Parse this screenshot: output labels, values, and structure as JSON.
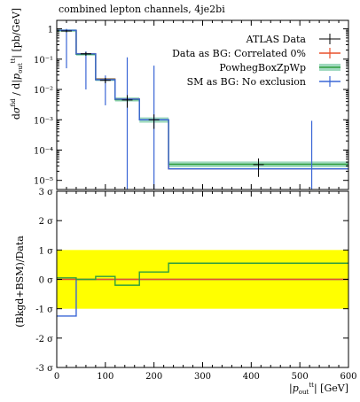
{
  "chart_data": [
    {
      "type": "line",
      "title": "combined lepton channels, 4je2bi",
      "ylabel": "dσ^fid / d|p_out^tt| [pb/GeV]",
      "xlabel": "|p_out^tt| [GeV]",
      "yscale": "log",
      "ylim": [
        5e-06,
        1.0
      ],
      "xlim": [
        0,
        600
      ],
      "legend_position": "top-right",
      "y_tick_labels": [
        "1",
        "10⁻¹",
        "10⁻²",
        "10⁻³",
        "10⁻⁴",
        "10⁻⁵"
      ],
      "x_tick_labels": [
        "0",
        "100",
        "200",
        "300",
        "400",
        "500",
        "600"
      ],
      "bin_edges": [
        0,
        40,
        80,
        120,
        170,
        230,
        600
      ],
      "series": [
        {
          "name": "ATLAS Data",
          "color": "#000000",
          "values": [
            0.85,
            0.15,
            0.02,
            0.0045,
            0.001,
            3.3e-05
          ],
          "err_low": [
            0.08,
            0.02,
            0.004,
            0.002,
            0.0005,
            2e-05
          ],
          "err_high": [
            0.08,
            0.02,
            0.004,
            0.002,
            0.0005,
            2e-05
          ]
        },
        {
          "name": "Data as BG: Correlated 0%",
          "color": "#e8512b",
          "values": [
            0.9,
            0.15,
            0.022,
            0.0048,
            0.001,
            2.4e-05
          ]
        },
        {
          "name": "PowhegBoxZpWp",
          "color": "#2f9e3e",
          "band_color": "#9fd9bf",
          "values": [
            0.88,
            0.145,
            0.021,
            0.0046,
            0.001,
            3.4e-05
          ],
          "band_low": [
            0.8,
            0.13,
            0.019,
            0.004,
            0.0008,
            2.7e-05
          ],
          "band_high": [
            0.96,
            0.16,
            0.024,
            0.0055,
            0.0012,
            4.2e-05
          ]
        },
        {
          "name": "SM as BG: No exclusion",
          "color": "#3a66d6",
          "values": [
            0.9,
            0.15,
            0.021,
            0.0048,
            0.001,
            2.4e-05
          ],
          "err_low": [
            0.85,
            0.14,
            0.018,
            0.0048,
            0.001,
            2.4e-05
          ],
          "err_high": [
            0.1,
            0.03,
            0.008,
            0.11,
            0.06,
            0.0009
          ]
        }
      ]
    },
    {
      "type": "line",
      "ylabel": "(Bkgd+BSM)/Data",
      "xlabel": "|p_out^tt| [GeV]",
      "xlim": [
        0,
        600
      ],
      "ylim": [
        -3,
        3
      ],
      "y_tick_labels": [
        "3 σ",
        "2 σ",
        "1 σ",
        "0 σ",
        "-1 σ",
        "-2 σ",
        "-3 σ"
      ],
      "x_tick_labels": [
        "0",
        "100",
        "200",
        "300",
        "400",
        "500",
        "600"
      ],
      "band": {
        "low": -1,
        "high": 1,
        "color": "#ffff00"
      },
      "bin_edges": [
        0,
        40,
        80,
        120,
        170,
        230,
        600
      ],
      "series": [
        {
          "name": "Data as BG: Correlated 0%",
          "color": "#e8512b",
          "values": [
            0,
            0,
            0,
            0,
            0,
            0
          ]
        },
        {
          "name": "PowhegBoxZpWp",
          "color": "#2f9e3e",
          "values": [
            0.05,
            0.0,
            0.1,
            -0.2,
            0.25,
            0.55
          ]
        },
        {
          "name": "SM as BG: No exclusion",
          "color": "#3a66d6",
          "values": [
            -1.25,
            0.0,
            0.0,
            0.0,
            0.0,
            0.0
          ]
        }
      ]
    }
  ],
  "legend": {
    "title": "combined lepton channels, 4je2bi",
    "items": [
      "ATLAS Data",
      "Data as BG: Correlated 0%",
      "PowhegBoxZpWp",
      "SM as BG: No exclusion"
    ]
  }
}
